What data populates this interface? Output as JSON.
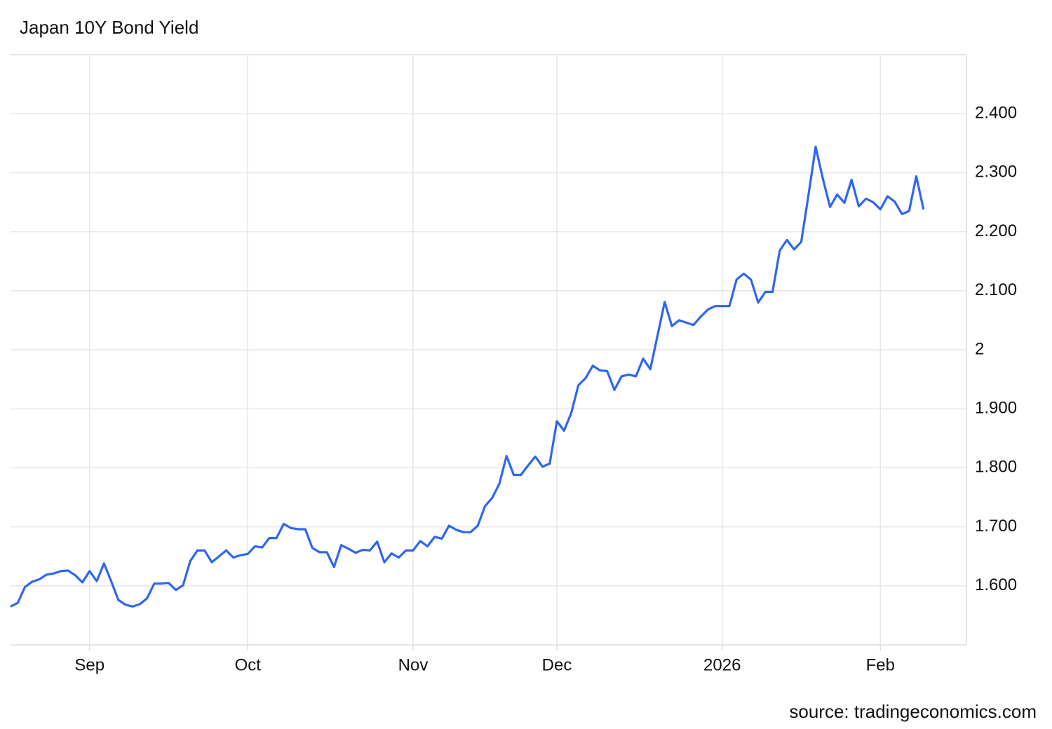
{
  "chart_data": {
    "type": "line",
    "title": "Japan 10Y Bond Yield",
    "source": "source: tradingeconomics.com",
    "color": "#2f66f0",
    "grid": true,
    "axis_side": "right",
    "ylim": [
      1.5,
      2.5
    ],
    "yticks": [
      {
        "value": 1.6,
        "label": "1.600"
      },
      {
        "value": 1.7,
        "label": "1.700"
      },
      {
        "value": 1.8,
        "label": "1.800"
      },
      {
        "value": 1.9,
        "label": "1.900"
      },
      2,
      {
        "value": 2.1,
        "label": "2.100"
      },
      {
        "value": 2.2,
        "label": "2.200"
      },
      {
        "value": 2.3,
        "label": "2.300"
      },
      {
        "value": 2.4,
        "label": "2.400"
      }
    ],
    "categories": [
      null,
      null,
      null,
      null,
      null,
      null,
      null,
      null,
      null,
      null,
      null,
      "Sep",
      null,
      null,
      null,
      null,
      null,
      null,
      null,
      null,
      null,
      null,
      null,
      null,
      null,
      null,
      null,
      null,
      null,
      null,
      null,
      null,
      null,
      "Oct",
      null,
      null,
      null,
      null,
      null,
      null,
      null,
      null,
      null,
      null,
      null,
      null,
      null,
      null,
      null,
      null,
      null,
      null,
      null,
      null,
      null,
      null,
      "Nov",
      null,
      null,
      null,
      null,
      null,
      null,
      null,
      null,
      null,
      null,
      null,
      null,
      null,
      null,
      null,
      null,
      null,
      null,
      null,
      "Dec",
      null,
      null,
      null,
      null,
      null,
      null,
      null,
      null,
      null,
      null,
      null,
      null,
      null,
      null,
      null,
      null,
      null,
      null,
      null,
      null,
      null,
      null,
      "2026",
      null,
      null,
      null,
      null,
      null,
      null,
      null,
      null,
      null,
      null,
      null,
      null,
      null,
      null,
      null,
      null,
      null,
      null,
      null,
      null,
      null,
      "Feb",
      null,
      null,
      null,
      null,
      null,
      null
    ],
    "values": [
      1.565,
      1.571,
      1.598,
      1.607,
      1.611,
      1.619,
      1.621,
      1.625,
      1.626,
      1.618,
      1.606,
      1.625,
      1.608,
      1.638,
      1.608,
      1.576,
      1.568,
      1.565,
      1.569,
      1.579,
      1.604,
      1.604,
      1.605,
      1.593,
      1.601,
      1.642,
      1.66,
      1.66,
      1.64,
      1.65,
      1.66,
      1.648,
      1.652,
      1.654,
      1.667,
      1.665,
      1.681,
      1.681,
      1.705,
      1.698,
      1.696,
      1.696,
      1.664,
      1.657,
      1.657,
      1.632,
      1.669,
      1.663,
      1.656,
      1.661,
      1.66,
      1.675,
      1.64,
      1.655,
      1.648,
      1.66,
      1.66,
      1.676,
      1.667,
      1.683,
      1.68,
      1.702,
      1.695,
      1.691,
      1.691,
      1.702,
      1.735,
      1.749,
      1.773,
      1.82,
      1.788,
      1.788,
      1.804,
      1.819,
      1.802,
      1.807,
      1.879,
      1.863,
      1.893,
      1.94,
      1.952,
      1.973,
      1.965,
      1.964,
      1.932,
      1.955,
      1.958,
      1.955,
      1.985,
      1.967,
      2.024,
      2.081,
      2.04,
      2.05,
      2.046,
      2.042,
      2.056,
      2.068,
      2.074,
      2.074,
      2.074,
      2.119,
      2.129,
      2.119,
      2.08,
      2.098,
      2.098,
      2.168,
      2.186,
      2.17,
      2.183,
      2.262,
      2.344,
      2.29,
      2.242,
      2.263,
      2.249,
      2.288,
      2.243,
      2.256,
      2.25,
      2.238,
      2.26,
      2.251,
      2.23,
      2.235,
      2.294,
      2.238
    ]
  }
}
